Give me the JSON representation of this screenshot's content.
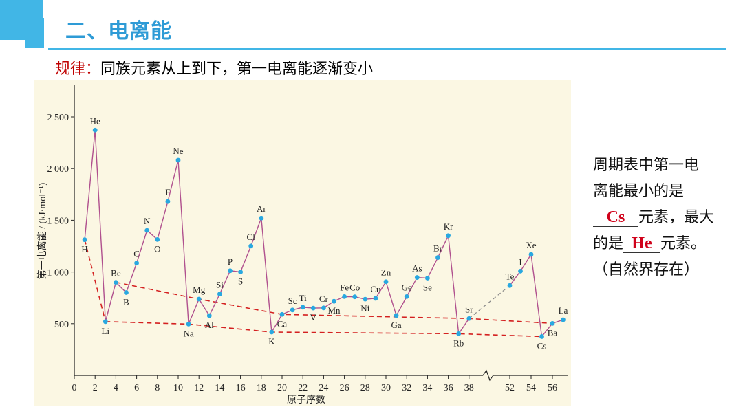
{
  "header": {
    "title": "二、电离能"
  },
  "rule": {
    "label": "规律：",
    "text": "同族元素从上到下，第一电离能逐渐变小"
  },
  "side": {
    "line1": "周期表中第一电",
    "line2": "离能最小的是",
    "answer1": "Cs",
    "suffix1": "元素，最大",
    "prefix2": "的是",
    "answer2": "He",
    "suffix2": "元素。",
    "line5": "（自然界存在）"
  },
  "colors": {
    "accent": "#41b6e6",
    "title": "#2e9bd6",
    "rule_label": "#c00000",
    "answer": "#d0021b",
    "line": "#b0508e",
    "trend": "#d42020",
    "point": "#29a8e0"
  },
  "chart_data": {
    "type": "line",
    "ylabel": "第一电离能 / (kJ·mol⁻¹)",
    "xlabel": "原子序数",
    "ylim": [
      0,
      2600
    ],
    "y_ticks": [
      {
        "value": 500,
        "label": "500"
      },
      {
        "value": 1000,
        "label": "1 000"
      },
      {
        "value": 1500,
        "label": "1 500"
      },
      {
        "value": 2000,
        "label": "2 000"
      },
      {
        "value": 2500,
        "label": "2 500"
      }
    ],
    "x_ticks": [
      "0",
      "2",
      "4",
      "6",
      "8",
      "10",
      "12",
      "14",
      "16",
      "18",
      "20",
      "22",
      "24",
      "26",
      "28",
      "30",
      "32",
      "34",
      "36",
      "38",
      "52",
      "54",
      "56"
    ],
    "axis_break_after": 38,
    "series": [
      {
        "points": [
          {
            "z": 1,
            "symbol": "H",
            "ie": 1312
          },
          {
            "z": 2,
            "symbol": "He",
            "ie": 2372
          },
          {
            "z": 3,
            "symbol": "Li",
            "ie": 520
          },
          {
            "z": 4,
            "symbol": "Be",
            "ie": 900
          },
          {
            "z": 5,
            "symbol": "B",
            "ie": 801
          },
          {
            "z": 6,
            "symbol": "C",
            "ie": 1086
          },
          {
            "z": 7,
            "symbol": "N",
            "ie": 1402
          },
          {
            "z": 8,
            "symbol": "O",
            "ie": 1314
          },
          {
            "z": 9,
            "symbol": "F",
            "ie": 1681
          },
          {
            "z": 10,
            "symbol": "Ne",
            "ie": 2081
          },
          {
            "z": 11,
            "symbol": "Na",
            "ie": 496
          },
          {
            "z": 12,
            "symbol": "Mg",
            "ie": 738
          },
          {
            "z": 13,
            "symbol": "Al",
            "ie": 578
          },
          {
            "z": 14,
            "symbol": "Si",
            "ie": 787
          },
          {
            "z": 15,
            "symbol": "P",
            "ie": 1012
          },
          {
            "z": 16,
            "symbol": "S",
            "ie": 1000
          },
          {
            "z": 17,
            "symbol": "Cl",
            "ie": 1251
          },
          {
            "z": 18,
            "symbol": "Ar",
            "ie": 1521
          },
          {
            "z": 19,
            "symbol": "K",
            "ie": 419
          },
          {
            "z": 20,
            "symbol": "Ca",
            "ie": 590
          },
          {
            "z": 21,
            "symbol": "Sc",
            "ie": 633
          },
          {
            "z": 22,
            "symbol": "Ti",
            "ie": 659
          },
          {
            "z": 23,
            "symbol": "V",
            "ie": 651
          },
          {
            "z": 24,
            "symbol": "Cr",
            "ie": 653
          },
          {
            "z": 25,
            "symbol": "Mn",
            "ie": 717
          },
          {
            "z": 26,
            "symbol": "Fe",
            "ie": 762
          },
          {
            "z": 27,
            "symbol": "Co",
            "ie": 760
          },
          {
            "z": 28,
            "symbol": "Ni",
            "ie": 737
          },
          {
            "z": 29,
            "symbol": "Cu",
            "ie": 745
          },
          {
            "z": 30,
            "symbol": "Zn",
            "ie": 906
          },
          {
            "z": 31,
            "symbol": "Ga",
            "ie": 579
          },
          {
            "z": 32,
            "symbol": "Ge",
            "ie": 762
          },
          {
            "z": 33,
            "symbol": "As",
            "ie": 947
          },
          {
            "z": 34,
            "symbol": "Se",
            "ie": 941
          },
          {
            "z": 35,
            "symbol": "Br",
            "ie": 1140
          },
          {
            "z": 36,
            "symbol": "Kr",
            "ie": 1351
          },
          {
            "z": 37,
            "symbol": "Rb",
            "ie": 403
          },
          {
            "z": 38,
            "symbol": "Sr",
            "ie": 550
          }
        ]
      },
      {
        "points": [
          {
            "z": 52,
            "symbol": "Te",
            "ie": 869
          },
          {
            "z": 53,
            "symbol": "I",
            "ie": 1008
          },
          {
            "z": 54,
            "symbol": "Xe",
            "ie": 1170
          },
          {
            "z": 55,
            "symbol": "Cs",
            "ie": 376
          },
          {
            "z": 56,
            "symbol": "Ba",
            "ie": 503
          },
          {
            "z": 57,
            "symbol": "La",
            "ie": 538
          }
        ]
      }
    ],
    "trend_lines": [
      {
        "z": [
          3,
          11,
          19,
          37,
          55
        ],
        "ie": [
          520,
          496,
          419,
          403,
          376
        ]
      },
      {
        "z": [
          4,
          12,
          20,
          38,
          56
        ],
        "ie": [
          900,
          738,
          590,
          550,
          503
        ]
      }
    ]
  }
}
